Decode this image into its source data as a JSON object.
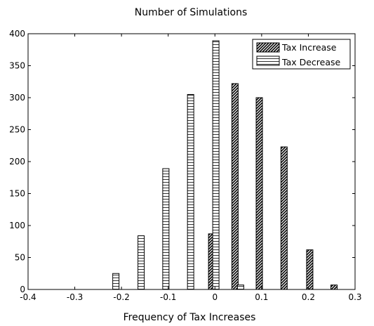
{
  "chart_data": {
    "type": "bar",
    "title": "Number of Simulations",
    "xlabel": "Frequency of Tax Increases",
    "ylabel": "",
    "xlim": [
      -0.4,
      0.3
    ],
    "ylim": [
      0,
      400
    ],
    "xticks": [
      -0.4,
      -0.3,
      -0.2,
      -0.1,
      0,
      0.1,
      0.2,
      0.3
    ],
    "xtick_labels": [
      "-0.4",
      "-0.3",
      "-0.2",
      "-0.1",
      "0",
      "0.1",
      "0.2",
      "0.3"
    ],
    "yticks": [
      0,
      50,
      100,
      150,
      200,
      250,
      300,
      350,
      400
    ],
    "ytick_labels": [
      "0",
      "50",
      "100",
      "150",
      "200",
      "250",
      "300",
      "350",
      "400"
    ],
    "grid": false,
    "legend_position": "top-right",
    "series": [
      {
        "name": "Tax Increase",
        "pattern": "diagonal-hatch",
        "color": "#000000",
        "points": [
          {
            "x": -0.007,
            "y": 87
          },
          {
            "x": 0.043,
            "y": 322
          },
          {
            "x": 0.095,
            "y": 300
          },
          {
            "x": 0.148,
            "y": 223
          },
          {
            "x": 0.203,
            "y": 62
          },
          {
            "x": 0.255,
            "y": 7
          }
        ]
      },
      {
        "name": "Tax Decrease",
        "pattern": "horizontal-lines",
        "color": "#000000",
        "points": [
          {
            "x": -0.212,
            "y": 25
          },
          {
            "x": -0.158,
            "y": 84
          },
          {
            "x": -0.105,
            "y": 189
          },
          {
            "x": -0.052,
            "y": 305
          },
          {
            "x": 0.002,
            "y": 389
          },
          {
            "x": 0.055,
            "y": 7
          }
        ]
      }
    ]
  }
}
